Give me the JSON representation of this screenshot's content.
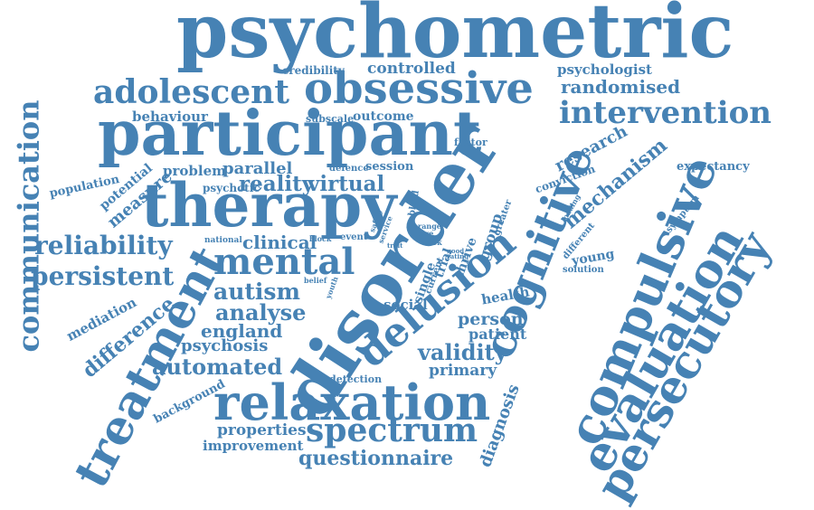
{
  "word_color": "#4682b4",
  "background_color": "#ffffff",
  "words": [
    "psychometric",
    "participant",
    "therapy",
    "disorder",
    "obsessive",
    "adolescent",
    "intervention",
    "cognitive",
    "compulsive",
    "evaluation",
    "persecutory",
    "treatment",
    "relaxation",
    "delusion",
    "mental",
    "spectrum",
    "communication",
    "reliability",
    "persistent",
    "autism",
    "analyse",
    "england",
    "psychosis",
    "automated",
    "validity",
    "primary",
    "person",
    "patient",
    "diagnosis",
    "questionnaire",
    "properties",
    "improvement",
    "background",
    "difference",
    "mediation",
    "population",
    "potential",
    "measure",
    "problem",
    "parallel",
    "reality",
    "virtual",
    "psychotic",
    "behaviour",
    "credibility",
    "controlled",
    "randomised",
    "psychologist",
    "subscale",
    "outcome",
    "factor",
    "defence",
    "session",
    "research",
    "mechanism",
    "expectancy",
    "conviction",
    "loading",
    "symptom",
    "different",
    "young",
    "solution",
    "group",
    "greater",
    "thrive",
    "trial",
    "single",
    "current",
    "health",
    "social",
    "clinical",
    "national",
    "block",
    "event",
    "safety",
    "service",
    "blind",
    "range",
    "week",
    "care",
    "rating",
    "good",
    "trait",
    "belief",
    "youth",
    "detection"
  ]
}
